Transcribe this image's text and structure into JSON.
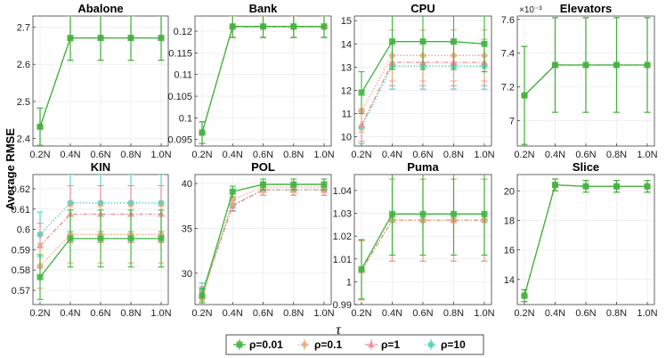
{
  "figure": {
    "ylabel": "Average RMSE",
    "xlabel": "τ",
    "legend": {
      "entries": [
        {
          "label": "ρ=0.01",
          "color": "#3cb43c",
          "marker": "square",
          "dash": "solid"
        },
        {
          "label": "ρ=0.1",
          "color": "#f0a878",
          "marker": "diamond",
          "dash": "dotted"
        },
        {
          "label": "ρ=1",
          "color": "#ec8c94",
          "marker": "triangle",
          "dash": "dashdot"
        },
        {
          "label": "ρ=10",
          "color": "#4cd4b4",
          "marker": "circle",
          "dash": "dotted"
        }
      ]
    }
  },
  "chart_data": [
    {
      "type": "line",
      "title": "Abalone",
      "categories": [
        "0.2N",
        "0.4N",
        "0.6N",
        "0.8N",
        "1.0N"
      ],
      "ylim": [
        2.38,
        2.73
      ],
      "yticks": [
        2.4,
        2.5,
        2.6,
        2.7
      ],
      "ytick_labels": [
        "2.4",
        "2.5",
        "2.6",
        "2.7"
      ],
      "series": [
        {
          "name": "ρ=0.01",
          "values": [
            2.432,
            2.671,
            2.671,
            2.671,
            2.671
          ],
          "err": [
            0.05,
            0.06,
            0.06,
            0.06,
            0.06
          ]
        },
        {
          "name": "ρ=0.1",
          "values": [
            2.432,
            2.671,
            2.671,
            2.671,
            2.671
          ],
          "err": [
            0.05,
            0.06,
            0.06,
            0.06,
            0.06
          ]
        },
        {
          "name": "ρ=1",
          "values": [
            2.432,
            2.671,
            2.671,
            2.671,
            2.671
          ],
          "err": [
            0.05,
            0.06,
            0.06,
            0.06,
            0.06
          ]
        },
        {
          "name": "ρ=10",
          "values": [
            2.432,
            2.671,
            2.671,
            2.671,
            2.671
          ],
          "err": [
            0.05,
            0.06,
            0.06,
            0.06,
            0.06
          ]
        }
      ]
    },
    {
      "type": "line",
      "title": "Bank",
      "categories": [
        "0.2N",
        "0.4N",
        "0.6N",
        "0.8N",
        "1.0N"
      ],
      "ylim": [
        0.0935,
        0.1235
      ],
      "yticks": [
        0.095,
        0.1,
        0.105,
        0.11,
        0.115,
        0.12
      ],
      "ytick_labels": [
        "0.095",
        "0.1",
        "0.105",
        "0.11",
        "0.115",
        "0.12"
      ],
      "series": [
        {
          "name": "ρ=0.01",
          "values": [
            0.0966,
            0.1211,
            0.1211,
            0.1211,
            0.1211
          ],
          "err": [
            0.0025,
            0.0025,
            0.0025,
            0.0025,
            0.0025
          ]
        },
        {
          "name": "ρ=0.1",
          "values": [
            0.0966,
            0.121,
            0.121,
            0.121,
            0.121
          ],
          "err": [
            0.0025,
            0.0025,
            0.0025,
            0.0025,
            0.0025
          ]
        },
        {
          "name": "ρ=1",
          "values": [
            0.0966,
            0.121,
            0.121,
            0.121,
            0.121
          ],
          "err": [
            0.0025,
            0.0025,
            0.0025,
            0.0025,
            0.0025
          ]
        },
        {
          "name": "ρ=10",
          "values": [
            0.0966,
            0.121,
            0.121,
            0.121,
            0.121
          ],
          "err": [
            0.0025,
            0.0025,
            0.0025,
            0.0025,
            0.0025
          ]
        }
      ]
    },
    {
      "type": "line",
      "title": "CPU",
      "categories": [
        "0.2N",
        "0.4N",
        "0.6N",
        "0.8N",
        "1.0N"
      ],
      "ylim": [
        9.6,
        15.2
      ],
      "yticks": [
        10,
        11,
        12,
        13,
        14,
        15
      ],
      "ytick_labels": [
        "10",
        "11",
        "12",
        "13",
        "14",
        "15"
      ],
      "series": [
        {
          "name": "ρ=0.01",
          "values": [
            11.9,
            14.1,
            14.1,
            14.1,
            14.0
          ],
          "err": [
            0.9,
            1.2,
            1.2,
            1.2,
            1.2
          ]
        },
        {
          "name": "ρ=0.1",
          "values": [
            11.1,
            13.5,
            13.5,
            13.5,
            13.5
          ],
          "err": [
            0.9,
            1.1,
            1.1,
            1.1,
            1.1
          ]
        },
        {
          "name": "ρ=1",
          "values": [
            10.5,
            13.2,
            13.2,
            13.2,
            13.2
          ],
          "err": [
            0.7,
            1.0,
            1.0,
            1.0,
            1.0
          ]
        },
        {
          "name": "ρ=10",
          "values": [
            10.4,
            13.05,
            13.05,
            13.05,
            13.05
          ],
          "err": [
            0.7,
            1.0,
            1.0,
            1.0,
            1.0
          ]
        }
      ]
    },
    {
      "type": "line",
      "title": "Elevators",
      "categories": [
        "0.2N",
        "0.4N",
        "0.6N",
        "0.8N",
        "1.0N"
      ],
      "ylim": [
        6.85,
        7.62
      ],
      "yticks": [
        7.0,
        7.2,
        7.4,
        7.6
      ],
      "ytick_labels": [
        "7",
        "7.2",
        "7.4",
        "7.6"
      ],
      "y_exponent": "×10⁻³",
      "series": [
        {
          "name": "ρ=0.01",
          "values": [
            7.15,
            7.33,
            7.33,
            7.33,
            7.33
          ],
          "err": [
            0.29,
            0.28,
            0.28,
            0.28,
            0.28
          ]
        },
        {
          "name": "ρ=0.1",
          "values": [
            7.15,
            7.33,
            7.33,
            7.33,
            7.33
          ],
          "err": [
            0.29,
            0.28,
            0.28,
            0.28,
            0.28
          ]
        },
        {
          "name": "ρ=1",
          "values": [
            7.15,
            7.33,
            7.33,
            7.33,
            7.33
          ],
          "err": [
            0.29,
            0.28,
            0.28,
            0.28,
            0.28
          ]
        },
        {
          "name": "ρ=10",
          "values": [
            7.15,
            7.33,
            7.33,
            7.33,
            7.33
          ],
          "err": [
            0.29,
            0.28,
            0.28,
            0.28,
            0.28
          ]
        }
      ]
    },
    {
      "type": "line",
      "title": "KIN",
      "categories": [
        "0.2N",
        "0.4N",
        "0.6N",
        "0.8N",
        "1.0N"
      ],
      "ylim": [
        0.563,
        0.627
      ],
      "yticks": [
        0.57,
        0.58,
        0.59,
        0.6,
        0.61,
        0.62
      ],
      "ytick_labels": [
        "0.57",
        "0.58",
        "0.59",
        "0.6",
        "0.61",
        "0.62"
      ],
      "series": [
        {
          "name": "ρ=0.01",
          "values": [
            0.5765,
            0.5955,
            0.5955,
            0.5955,
            0.5955
          ],
          "err": [
            0.011,
            0.014,
            0.014,
            0.014,
            0.014
          ]
        },
        {
          "name": "ρ=0.1",
          "values": [
            0.582,
            0.5975,
            0.5975,
            0.5975,
            0.5975
          ],
          "err": [
            0.011,
            0.014,
            0.014,
            0.014,
            0.014
          ]
        },
        {
          "name": "ρ=1",
          "values": [
            0.592,
            0.6075,
            0.6075,
            0.6075,
            0.6075
          ],
          "err": [
            0.011,
            0.014,
            0.014,
            0.014,
            0.014
          ]
        },
        {
          "name": "ρ=10",
          "values": [
            0.5975,
            0.613,
            0.613,
            0.613,
            0.613
          ],
          "err": [
            0.011,
            0.014,
            0.014,
            0.014,
            0.014
          ]
        }
      ]
    },
    {
      "type": "line",
      "title": "POL",
      "categories": [
        "0.2N",
        "0.4N",
        "0.6N",
        "0.8N",
        "1.0N"
      ],
      "ylim": [
        26.5,
        41
      ],
      "yticks": [
        30,
        35,
        40
      ],
      "ytick_labels": [
        "30",
        "35",
        "40"
      ],
      "series": [
        {
          "name": "ρ=0.01",
          "values": [
            27.5,
            39.1,
            39.9,
            39.9,
            39.9
          ],
          "err": [
            0.8,
            0.6,
            0.6,
            0.6,
            0.6
          ]
        },
        {
          "name": "ρ=0.1",
          "values": [
            27.2,
            38.2,
            39.6,
            39.6,
            39.6
          ],
          "err": [
            0.8,
            0.6,
            0.6,
            0.6,
            0.6
          ]
        },
        {
          "name": "ρ=1",
          "values": [
            27.7,
            37.5,
            39.3,
            39.3,
            39.3
          ],
          "err": [
            0.8,
            0.6,
            0.6,
            0.6,
            0.6
          ]
        },
        {
          "name": "ρ=10",
          "values": [
            28.1,
            37.6,
            39.3,
            39.3,
            39.3
          ],
          "err": [
            0.8,
            0.6,
            0.6,
            0.6,
            0.6
          ]
        }
      ]
    },
    {
      "type": "line",
      "title": "Puma",
      "categories": [
        "0.2N",
        "0.4N",
        "0.6N",
        "0.8N",
        "1.0N"
      ],
      "ylim": [
        0.99,
        1.047
      ],
      "yticks": [
        0.99,
        1.0,
        1.01,
        1.02,
        1.03,
        1.04
      ],
      "ytick_labels": [
        "0.99",
        "1",
        "1.01",
        "1.02",
        "1.03",
        "1.04"
      ],
      "series": [
        {
          "name": "ρ=0.01",
          "values": [
            1.0055,
            1.0297,
            1.0297,
            1.0297,
            1.0297
          ],
          "err": [
            0.013,
            0.018,
            0.018,
            0.018,
            0.018
          ]
        },
        {
          "name": "ρ=0.1",
          "values": [
            1.005,
            1.027,
            1.027,
            1.027,
            1.027
          ],
          "err": [
            0.013,
            0.018,
            0.018,
            0.018,
            0.018
          ]
        },
        {
          "name": "ρ=1",
          "values": [
            1.005,
            1.027,
            1.027,
            1.027,
            1.027
          ],
          "err": [
            0.013,
            0.018,
            0.018,
            0.018,
            0.018
          ]
        },
        {
          "name": "ρ=10",
          "values": [
            1.005,
            1.027,
            1.027,
            1.027,
            1.027
          ],
          "err": [
            0.013,
            0.018,
            0.018,
            0.018,
            0.018
          ]
        }
      ]
    },
    {
      "type": "line",
      "title": "Slice",
      "categories": [
        "0.2N",
        "0.4N",
        "0.6N",
        "0.8N",
        "1.0N"
      ],
      "ylim": [
        12.3,
        21.1
      ],
      "yticks": [
        14,
        16,
        18,
        20
      ],
      "ytick_labels": [
        "14",
        "16",
        "18",
        "20"
      ],
      "series": [
        {
          "name": "ρ=0.01",
          "values": [
            12.9,
            20.4,
            20.3,
            20.3,
            20.3
          ],
          "err": [
            0.4,
            0.4,
            0.4,
            0.4,
            0.4
          ]
        },
        {
          "name": "ρ=0.1",
          "values": [
            12.9,
            20.4,
            20.3,
            20.3,
            20.3
          ],
          "err": [
            0.4,
            0.4,
            0.4,
            0.4,
            0.4
          ]
        },
        {
          "name": "ρ=1",
          "values": [
            12.9,
            20.4,
            20.3,
            20.3,
            20.3
          ],
          "err": [
            0.4,
            0.4,
            0.4,
            0.4,
            0.4
          ]
        },
        {
          "name": "ρ=10",
          "values": [
            12.9,
            20.4,
            20.3,
            20.3,
            20.3
          ],
          "err": [
            0.4,
            0.4,
            0.4,
            0.4,
            0.4
          ]
        }
      ]
    }
  ]
}
